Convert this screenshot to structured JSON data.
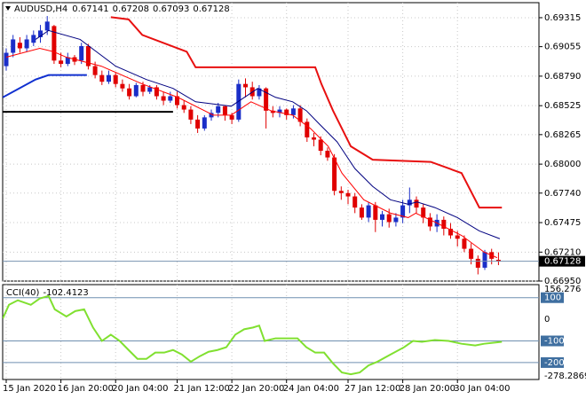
{
  "chart_data": {
    "type": "candlestick",
    "header": {
      "symbol": "AUDUSD,H4"
    },
    "up_color": "#1a2ec8",
    "down_color": "#e00000",
    "candles": [
      [
        0.6888,
        0.6904,
        0.6884,
        0.69
      ],
      [
        0.69,
        0.6916,
        0.6896,
        0.6912
      ],
      [
        0.6909,
        0.6914,
        0.69,
        0.6904
      ],
      [
        0.6904,
        0.6916,
        0.6901,
        0.6912
      ],
      [
        0.6909,
        0.692,
        0.6906,
        0.6916
      ],
      [
        0.6914,
        0.6925,
        0.6909,
        0.692
      ],
      [
        0.692,
        0.6933,
        0.6916,
        0.6928
      ],
      [
        0.6924,
        0.6925,
        0.689,
        0.6893
      ],
      [
        0.6893,
        0.69,
        0.6887,
        0.689
      ],
      [
        0.689,
        0.69,
        0.6888,
        0.6896
      ],
      [
        0.6896,
        0.6898,
        0.6889,
        0.6892
      ],
      [
        0.6893,
        0.6909,
        0.689,
        0.6906
      ],
      [
        0.6906,
        0.6908,
        0.6885,
        0.6888
      ],
      [
        0.6888,
        0.6892,
        0.6877,
        0.688
      ],
      [
        0.688,
        0.6884,
        0.6871,
        0.6874
      ],
      [
        0.6874,
        0.6884,
        0.6872,
        0.688
      ],
      [
        0.688,
        0.6882,
        0.6869,
        0.6872
      ],
      [
        0.6872,
        0.6876,
        0.6865,
        0.6868
      ],
      [
        0.6868,
        0.6872,
        0.6858,
        0.6861
      ],
      [
        0.6861,
        0.6873,
        0.686,
        0.6871
      ],
      [
        0.6871,
        0.6874,
        0.6861,
        0.6865
      ],
      [
        0.6865,
        0.6871,
        0.6863,
        0.6869
      ],
      [
        0.6869,
        0.6871,
        0.6858,
        0.6861
      ],
      [
        0.6861,
        0.6865,
        0.6853,
        0.6857
      ],
      [
        0.6857,
        0.6865,
        0.6855,
        0.6861
      ],
      [
        0.6861,
        0.6865,
        0.685,
        0.6853
      ],
      [
        0.6853,
        0.6857,
        0.6846,
        0.6849
      ],
      [
        0.6849,
        0.6852,
        0.6836,
        0.684
      ],
      [
        0.684,
        0.6844,
        0.6828,
        0.6832
      ],
      [
        0.6832,
        0.6844,
        0.683,
        0.6842
      ],
      [
        0.6842,
        0.6849,
        0.6839,
        0.6846
      ],
      [
        0.6846,
        0.6855,
        0.6842,
        0.6852
      ],
      [
        0.6852,
        0.6853,
        0.6839,
        0.6844
      ],
      [
        0.6844,
        0.6846,
        0.6836,
        0.684
      ],
      [
        0.684,
        0.6876,
        0.6838,
        0.6872
      ],
      [
        0.6872,
        0.6877,
        0.686,
        0.6869
      ],
      [
        0.6869,
        0.6874,
        0.6858,
        0.6861
      ],
      [
        0.6861,
        0.6871,
        0.6858,
        0.6868
      ],
      [
        0.6868,
        0.6869,
        0.6832,
        0.6848
      ],
      [
        0.6848,
        0.6852,
        0.6842,
        0.6846
      ],
      [
        0.6846,
        0.6852,
        0.6842,
        0.6849
      ],
      [
        0.6849,
        0.685,
        0.684,
        0.6844
      ],
      [
        0.6844,
        0.6853,
        0.6841,
        0.685
      ],
      [
        0.685,
        0.6853,
        0.6834,
        0.6838
      ],
      [
        0.6838,
        0.6841,
        0.682,
        0.6824
      ],
      [
        0.6824,
        0.6828,
        0.6816,
        0.6822
      ],
      [
        0.6822,
        0.6825,
        0.6808,
        0.6812
      ],
      [
        0.6812,
        0.6815,
        0.6803,
        0.6806
      ],
      [
        0.6806,
        0.6809,
        0.6772,
        0.6776
      ],
      [
        0.6776,
        0.678,
        0.6768,
        0.6774
      ],
      [
        0.6774,
        0.6777,
        0.6764,
        0.6771
      ],
      [
        0.6771,
        0.6774,
        0.6756,
        0.6761
      ],
      [
        0.6761,
        0.6764,
        0.675,
        0.6752
      ],
      [
        0.6752,
        0.6766,
        0.6748,
        0.6763
      ],
      [
        0.6763,
        0.6766,
        0.6739,
        0.675
      ],
      [
        0.675,
        0.6758,
        0.6744,
        0.6755
      ],
      [
        0.6755,
        0.676,
        0.6743,
        0.6748
      ],
      [
        0.6748,
        0.6756,
        0.6744,
        0.6752
      ],
      [
        0.6752,
        0.6768,
        0.6747,
        0.6763
      ],
      [
        0.6763,
        0.6779,
        0.6756,
        0.6768
      ],
      [
        0.6768,
        0.6771,
        0.6756,
        0.6761
      ],
      [
        0.6761,
        0.6764,
        0.6747,
        0.6752
      ],
      [
        0.6752,
        0.6756,
        0.674,
        0.6744
      ],
      [
        0.6744,
        0.6755,
        0.6739,
        0.675
      ],
      [
        0.675,
        0.6753,
        0.6736,
        0.6742
      ],
      [
        0.6742,
        0.6747,
        0.6733,
        0.6736
      ],
      [
        0.6736,
        0.674,
        0.6726,
        0.6733
      ],
      [
        0.6733,
        0.6736,
        0.6721,
        0.6724
      ],
      [
        0.6724,
        0.6729,
        0.671,
        0.6715
      ],
      [
        0.6715,
        0.6718,
        0.6701,
        0.6707
      ],
      [
        0.6707,
        0.6723,
        0.6705,
        0.6721
      ],
      [
        0.6721,
        0.6724,
        0.671,
        0.6715
      ],
      [
        0.67141,
        0.67208,
        0.67093,
        0.67128
      ]
    ],
    "xlim": [
      -0.52,
      77.92
    ],
    "xticks": [
      {
        "value": 0,
        "label": "15 Jan 2020"
      },
      {
        "value": 8,
        "label": "16 Jan 20:00"
      },
      {
        "value": 16,
        "label": "20 Jan 04:00"
      },
      {
        "value": 25,
        "label": "21 Jan 12:00"
      },
      {
        "value": 33,
        "label": "22 Jan 20:00"
      },
      {
        "value": 41,
        "label": "24 Jan 04:00"
      },
      {
        "value": 50,
        "label": "27 Jan 12:00"
      },
      {
        "value": 58,
        "label": "28 Jan 20:00"
      },
      {
        "value": 66,
        "label": "30 Jan 04:00"
      }
    ],
    "ylim": [
      0.6695,
      0.6945
    ],
    "yticks": [
      0.69315,
      0.69055,
      {
        "value": 0.6879,
        "label": "0.68790"
      },
      0.68525,
      0.68265,
      {
        "value": 0.68,
        "label": "0.68000"
      },
      {
        "value": 0.6774,
        "label": "0.67740"
      },
      0.67475,
      {
        "value": 0.6721,
        "label": "0.67210"
      },
      {
        "value": 0.6695,
        "label": "0.66950"
      }
    ],
    "grid": true,
    "lines": [
      {
        "color": "#ff0000",
        "width": 1,
        "x": [
          0,
          4.9,
          6.9,
          8.8,
          13.9,
          19.9,
          25.1,
          30.3,
          32.9,
          35.8,
          38.7,
          41.9,
          44.5,
          47.1,
          49.1,
          52.3,
          56.2,
          58.8,
          59.9,
          62.7,
          66.6,
          69.9,
          71.8
        ],
        "values": [
          0.6896,
          0.6904,
          0.6901,
          0.6896,
          0.6888,
          0.6872,
          0.686,
          0.6844,
          0.6844,
          0.6856,
          0.6848,
          0.6844,
          0.6832,
          0.6816,
          0.6792,
          0.6768,
          0.6756,
          0.6752,
          0.6756,
          0.6748,
          0.6736,
          0.6721,
          0.6716
        ]
      },
      {
        "color": "#000080",
        "width": 1,
        "x": [
          4.3,
          6.2,
          10.8,
          13.4,
          16,
          20.5,
          24.4,
          27.7,
          32.9,
          36.8,
          39.4,
          41.9,
          43.9,
          45.8,
          48.4,
          51,
          53.6,
          56.2,
          58.8,
          60.1,
          62.7,
          66,
          69.2,
          72.2
        ],
        "values": [
          0.6912,
          0.692,
          0.6912,
          0.69,
          0.6888,
          0.6876,
          0.6868,
          0.6856,
          0.6852,
          0.6868,
          0.686,
          0.6856,
          0.6848,
          0.6836,
          0.682,
          0.6796,
          0.678,
          0.6768,
          0.6764,
          0.6766,
          0.6761,
          0.6752,
          0.674,
          0.6733
        ]
      },
      {
        "color": "#e81010",
        "width": 2,
        "x": [
          15.3,
          17.9,
          19.9,
          26.4,
          27.7,
          45.2,
          46.1,
          47.8,
          49.1,
          50.4,
          53.6,
          62.1,
          66.6,
          69.2,
          72.5
        ],
        "values": [
          0.6932,
          0.693,
          0.6916,
          0.6901,
          0.6887,
          0.6887,
          0.6872,
          0.6848,
          0.6832,
          0.6816,
          0.6804,
          0.6802,
          0.6792,
          0.6761,
          0.6761
        ]
      },
      {
        "color": "#1030d0",
        "width": 2,
        "x": [
          -0.5,
          4.3,
          6.2,
          11.8
        ],
        "values": [
          0.686,
          0.6876,
          0.688,
          0.688
        ]
      },
      {
        "color": "#000000",
        "width": 2,
        "x": [
          -0.5,
          24.4
        ],
        "values": [
          0.6847,
          0.6847
        ]
      }
    ],
    "indicator": {
      "type": "line",
      "name": "CCI(40)",
      "current": -102.4123,
      "color": "#80e030",
      "x": [
        -0.5,
        0.4,
        1.7,
        3.6,
        4.9,
        6.2,
        7.1,
        8.8,
        10.1,
        11.4,
        12.7,
        14,
        15.3,
        16.6,
        17.9,
        19.2,
        20.5,
        21.8,
        23.1,
        24.4,
        25.7,
        27,
        28.3,
        29.6,
        30.9,
        32.2,
        33.5,
        34.8,
        36.1,
        37,
        37.8,
        39.4,
        40.6,
        42.6,
        43.9,
        45.2,
        46.5,
        47.8,
        49.1,
        50.4,
        51.7,
        53,
        54.3,
        56.2,
        58.2,
        59.5,
        60.8,
        62.7,
        64.7,
        66.6,
        68.6,
        69.9,
        72.5
      ],
      "values": [
        4,
        67,
        88,
        67,
        96,
        108,
        46,
        13,
        38,
        46,
        -38,
        -100,
        -71,
        -100,
        -142,
        -183,
        -183,
        -154,
        -154,
        -142,
        -163,
        -196,
        -171,
        -150,
        -142,
        -129,
        -71,
        -46,
        -38,
        -29,
        -100,
        -88,
        -88,
        -88,
        -129,
        -154,
        -154,
        -204,
        -246,
        -254,
        -246,
        -213,
        -196,
        -163,
        -129,
        -100,
        -104,
        -96,
        -100,
        -113,
        -121,
        -113,
        -104
      ],
      "ylim": [
        -278.2869,
        156.276
      ],
      "yticks": [
        156.276,
        100,
        0,
        -100,
        -200,
        -278.2869
      ],
      "levels": [
        100,
        -100,
        -200
      ]
    }
  }
}
